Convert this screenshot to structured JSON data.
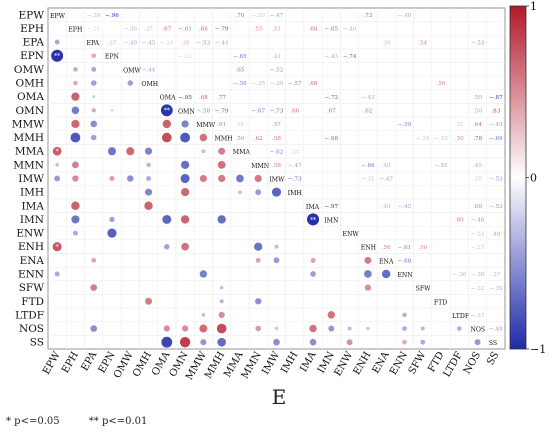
{
  "chart_data": {
    "type": "heatmap",
    "style": "lower-triangle circles (size/colour = correlation), upper-triangle printed coefficients, diagonal variable names",
    "variables": [
      "EPW",
      "EPH",
      "EPA",
      "EPN",
      "OMW",
      "OMH",
      "OMA",
      "OMN",
      "MMW",
      "MMH",
      "MMA",
      "MMN",
      "IMW",
      "IMH",
      "IMA",
      "IMN",
      "ENW",
      "ENH",
      "ENA",
      "ENN",
      "SFW",
      "FTD",
      "LTDF",
      "NOS",
      "SS"
    ],
    "xlabel": "E",
    "color_scale": {
      "min": -1,
      "mid": 0,
      "max": 1,
      "ticks": [
        1,
        0,
        -1
      ],
      "colors": {
        "positive": "#b2182b",
        "zero": "#ffffff",
        "negative": "#1f2aa8"
      }
    },
    "values_note": "matrix[i][j]; null = cell value not legible, left blank",
    "matrix": [
      [
        1,
        null,
        -0.39,
        -0.96,
        null,
        null,
        null,
        null,
        null,
        null,
        0.7,
        -0.29,
        -0.47,
        null,
        null,
        null,
        null,
        0.73,
        null,
        -0.4,
        null,
        null,
        null,
        null,
        null
      ],
      [
        null,
        1,
        -0.21,
        null,
        -0.36,
        0.37,
        0.67,
        -0.61,
        0.66,
        -0.79,
        null,
        0.55,
        0.51,
        null,
        0.68,
        -0.65,
        -0.4,
        null,
        null,
        null,
        null,
        null,
        null,
        null,
        null
      ],
      [
        -0.39,
        null,
        1,
        0.37,
        -0.4,
        -0.45,
        -0.24,
        0.36,
        -0.53,
        -0.44,
        null,
        null,
        null,
        null,
        null,
        null,
        null,
        null,
        0.39,
        null,
        0.54,
        null,
        null,
        -0.53,
        null
      ],
      [
        -0.96,
        null,
        0.37,
        1,
        null,
        null,
        null,
        -0.21,
        null,
        null,
        -0.65,
        null,
        0.41,
        null,
        null,
        -0.43,
        -0.74,
        null,
        null,
        null,
        null,
        null,
        null,
        null,
        null
      ],
      [
        null,
        -0.36,
        -0.4,
        null,
        1,
        -0.44,
        null,
        null,
        null,
        null,
        0.65,
        null,
        -0.52,
        null,
        null,
        null,
        null,
        null,
        null,
        null,
        null,
        null,
        null,
        null,
        null
      ],
      [
        null,
        0.37,
        -0.45,
        null,
        -0.44,
        1,
        null,
        null,
        null,
        null,
        -0.58,
        -0.35,
        -0.39,
        -0.57,
        0.68,
        null,
        null,
        null,
        null,
        null,
        null,
        0.56,
        null,
        null,
        null
      ],
      [
        null,
        0.67,
        -0.24,
        null,
        null,
        null,
        1,
        -0.95,
        0.68,
        0.77,
        null,
        null,
        null,
        null,
        null,
        -0.72,
        null,
        -0.43,
        null,
        null,
        null,
        null,
        null,
        0.5,
        -0.87
      ],
      [
        null,
        -0.61,
        0.36,
        -0.21,
        null,
        null,
        -0.95,
        1,
        -0.58,
        -0.79,
        null,
        -0.67,
        -0.73,
        0.66,
        null,
        0.67,
        null,
        0.62,
        null,
        null,
        null,
        null,
        null,
        0.5,
        0.83
      ],
      [
        null,
        0.66,
        -0.53,
        null,
        null,
        null,
        0.68,
        -0.58,
        1,
        0.61,
        0.31,
        null,
        0.57,
        null,
        null,
        null,
        null,
        null,
        null,
        -0.59,
        null,
        null,
        0.31,
        0.64,
        -0.49
      ],
      [
        null,
        -0.79,
        -0.44,
        null,
        null,
        null,
        0.77,
        -0.79,
        0.61,
        1,
        0.56,
        0.62,
        0.58,
        null,
        null,
        -0.68,
        null,
        null,
        null,
        null,
        -0.29,
        -0.33,
        0.5,
        0.78,
        -0.69
      ],
      [
        0.7,
        null,
        null,
        -0.65,
        0.65,
        -0.58,
        null,
        null,
        0.31,
        0.56,
        1,
        null,
        -0.62,
        0.31,
        null,
        null,
        null,
        null,
        null,
        null,
        null,
        null,
        null,
        null,
        null
      ],
      [
        -0.29,
        0.55,
        null,
        null,
        null,
        -0.35,
        null,
        -0.67,
        null,
        0.62,
        null,
        1,
        0.58,
        -0.47,
        null,
        null,
        null,
        -0.66,
        0.4,
        null,
        null,
        -0.51,
        null,
        0.45,
        null
      ],
      [
        -0.47,
        0.51,
        null,
        0.41,
        -0.52,
        -0.39,
        null,
        -0.73,
        0.57,
        0.58,
        -0.62,
        0.58,
        1,
        -0.73,
        null,
        null,
        null,
        -0.31,
        -0.47,
        null,
        null,
        null,
        null,
        0.28,
        -0.53
      ],
      [
        null,
        null,
        null,
        null,
        null,
        -0.57,
        null,
        0.66,
        null,
        null,
        0.31,
        -0.47,
        -0.73,
        1,
        null,
        null,
        null,
        null,
        null,
        null,
        null,
        null,
        null,
        null,
        null
      ],
      [
        null,
        0.68,
        null,
        null,
        null,
        0.68,
        null,
        null,
        null,
        null,
        null,
        null,
        null,
        null,
        1,
        -0.97,
        null,
        null,
        0.4,
        -0.45,
        null,
        null,
        null,
        0.6,
        -0.53
      ],
      [
        null,
        -0.65,
        null,
        -0.43,
        null,
        null,
        -0.72,
        0.67,
        null,
        -0.68,
        null,
        null,
        null,
        null,
        -0.97,
        1,
        null,
        null,
        null,
        null,
        null,
        null,
        0.6,
        -0.48,
        null
      ],
      [
        null,
        -0.4,
        null,
        -0.74,
        null,
        null,
        null,
        null,
        null,
        null,
        null,
        null,
        null,
        null,
        null,
        null,
        1,
        null,
        null,
        null,
        null,
        null,
        null,
        -0.32,
        0.48
      ],
      [
        0.73,
        null,
        null,
        null,
        null,
        null,
        -0.43,
        0.62,
        null,
        null,
        null,
        -0.66,
        -0.31,
        null,
        null,
        null,
        null,
        1,
        0.56,
        -0.61,
        0.5,
        null,
        null,
        -0.27,
        null
      ],
      [
        null,
        null,
        0.39,
        null,
        null,
        null,
        null,
        null,
        null,
        null,
        null,
        0.4,
        -0.47,
        null,
        0.4,
        null,
        null,
        0.56,
        1,
        -0.68,
        null,
        null,
        null,
        null,
        null
      ],
      [
        -0.4,
        null,
        null,
        null,
        null,
        null,
        null,
        null,
        -0.59,
        null,
        null,
        null,
        null,
        null,
        -0.45,
        null,
        null,
        -0.61,
        -0.68,
        1,
        null,
        null,
        -0.36,
        -0.38,
        0.37
      ],
      [
        null,
        null,
        0.54,
        null,
        null,
        null,
        null,
        null,
        null,
        -0.29,
        null,
        null,
        null,
        null,
        null,
        null,
        null,
        0.5,
        null,
        null,
        1,
        null,
        null,
        -0.32,
        -0.39
      ],
      [
        null,
        null,
        null,
        null,
        null,
        0.56,
        null,
        null,
        null,
        -0.33,
        null,
        -0.51,
        null,
        null,
        null,
        null,
        null,
        null,
        null,
        null,
        null,
        1,
        null,
        null,
        null
      ],
      [
        null,
        null,
        null,
        null,
        null,
        null,
        null,
        null,
        0.31,
        0.5,
        null,
        null,
        null,
        null,
        null,
        0.6,
        null,
        null,
        null,
        -0.36,
        null,
        null,
        1,
        -0.37,
        null
      ],
      [
        null,
        null,
        -0.53,
        null,
        null,
        null,
        0.5,
        0.5,
        0.64,
        0.78,
        null,
        0.45,
        0.28,
        null,
        0.6,
        -0.48,
        -0.32,
        -0.27,
        null,
        -0.38,
        -0.32,
        null,
        -0.37,
        1,
        -0.48
      ],
      [
        null,
        null,
        null,
        null,
        null,
        null,
        -0.87,
        0.83,
        -0.49,
        -0.69,
        null,
        null,
        -0.53,
        null,
        -0.53,
        null,
        0.48,
        null,
        null,
        0.37,
        -0.39,
        null,
        null,
        -0.48,
        1
      ]
    ],
    "significance": {
      "lower_triangle_marks": [
        {
          "row": "EPN",
          "col": "EPW",
          "mark": "**"
        },
        {
          "row": "OMN",
          "col": "OMA",
          "mark": "**"
        },
        {
          "row": "MMA",
          "col": "EPW",
          "mark": "*"
        },
        {
          "row": "IMN",
          "col": "IMA",
          "mark": "**"
        },
        {
          "row": "ENH",
          "col": "EPW",
          "mark": "*"
        }
      ]
    },
    "legend_footnotes": [
      "* p<=0.05",
      "** p<=0.01"
    ]
  }
}
